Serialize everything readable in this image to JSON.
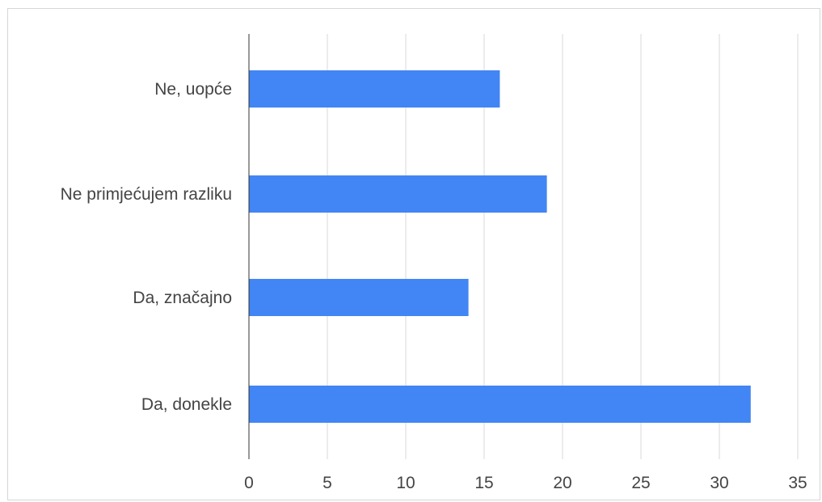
{
  "chart_data": {
    "type": "bar",
    "orientation": "horizontal",
    "categories": [
      "Ne, uopće",
      "Ne primjećujem razliku",
      "Da, značajno",
      "Da, donekle"
    ],
    "values": [
      16,
      19,
      14,
      32
    ],
    "xlim": [
      0,
      35
    ],
    "xticks": [
      0,
      5,
      10,
      15,
      20,
      25,
      30,
      35
    ],
    "grid": true,
    "colors": {
      "bar": "#4285f4",
      "grid": "#d9d9d9",
      "axis": "#333333"
    }
  }
}
